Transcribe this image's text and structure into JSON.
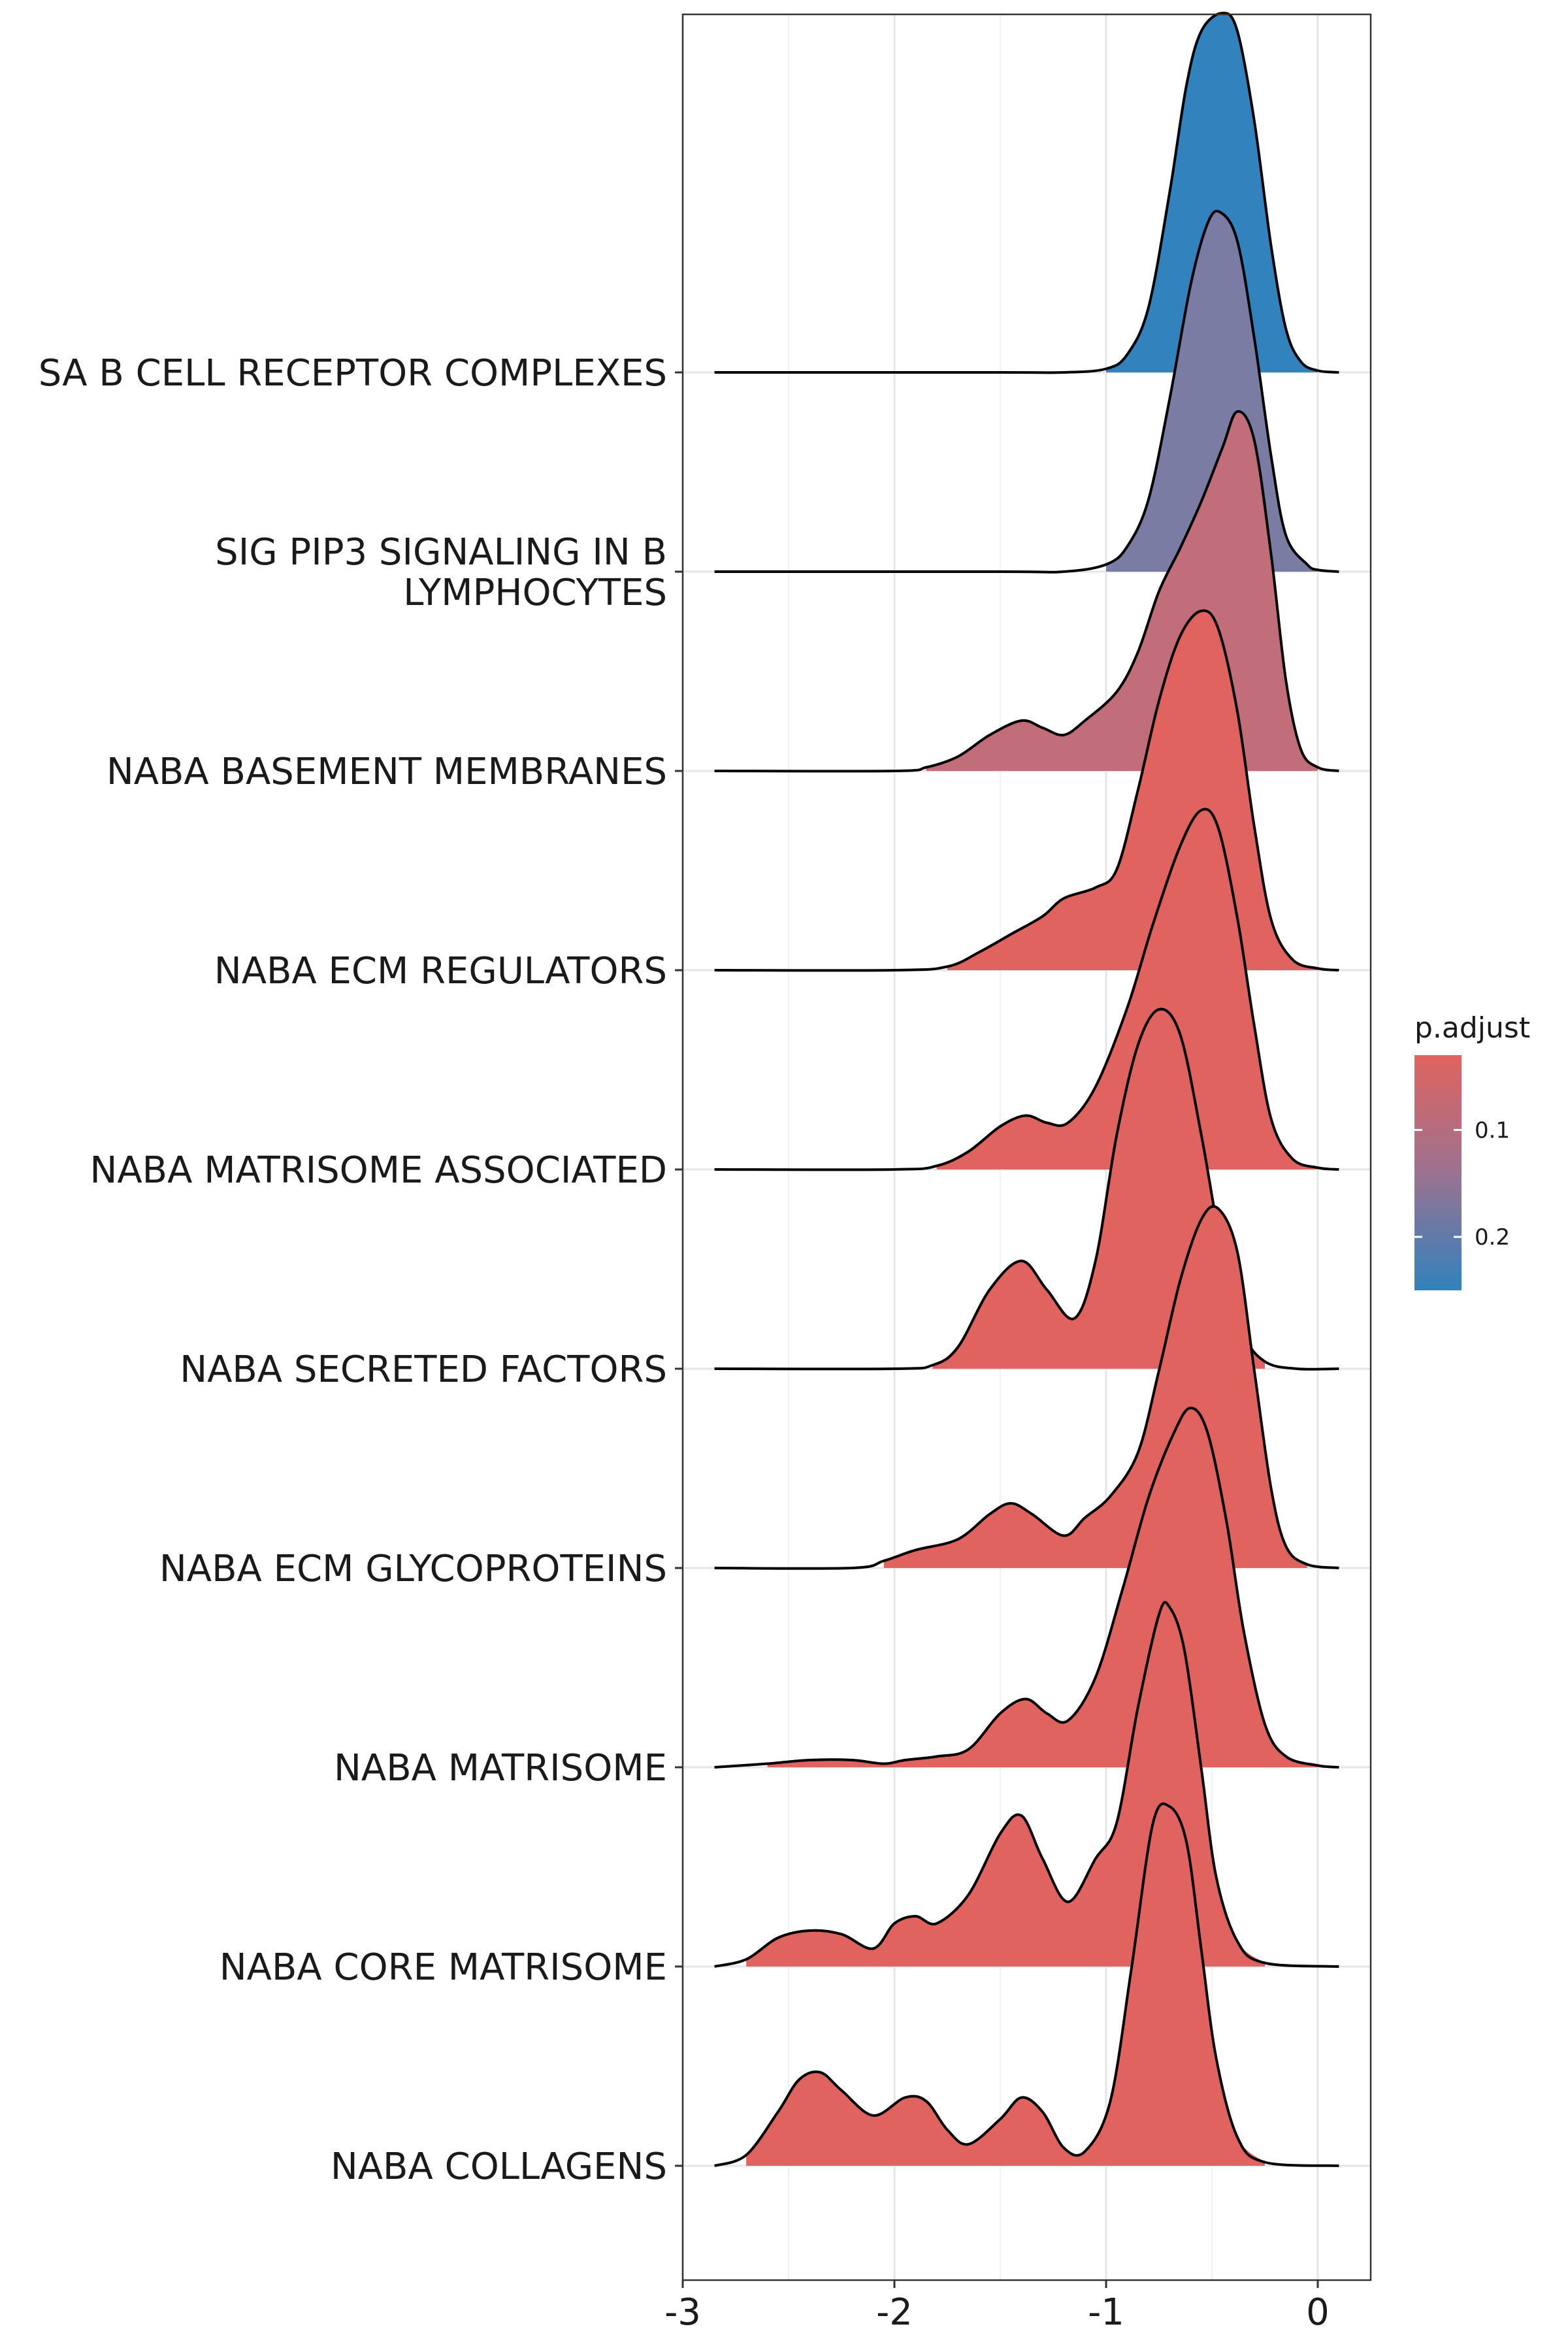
{
  "chart_data": {
    "type": "ridgeline",
    "xlabel": "",
    "ylabel": "",
    "xlim": [
      -3,
      0.25
    ],
    "xticks": [
      -3,
      -2,
      -1,
      0
    ],
    "xtick_labels": [
      "-3",
      "-2",
      "-1",
      "0"
    ],
    "grid": true,
    "legend": {
      "title": "p.adjust",
      "placement": "right",
      "ticks": [
        0.1,
        0.2
      ],
      "tick_labels": [
        "0.1",
        "0.2"
      ],
      "colors": {
        "low": "#E0635F",
        "mid": "#9B7290",
        "high": "#3182BD"
      }
    },
    "series": [
      {
        "name": "SA B CELL RECEPTOR COMPLEXES",
        "p_adjust": 0.24,
        "color": "#3182BD",
        "points": [
          [
            -2.85,
            0
          ],
          [
            -1.5,
            0
          ],
          [
            -1.2,
            0
          ],
          [
            -1.0,
            0.01
          ],
          [
            -0.9,
            0.05
          ],
          [
            -0.8,
            0.18
          ],
          [
            -0.7,
            0.5
          ],
          [
            -0.62,
            0.8
          ],
          [
            -0.55,
            0.95
          ],
          [
            -0.45,
            1.0
          ],
          [
            -0.38,
            0.95
          ],
          [
            -0.3,
            0.7
          ],
          [
            -0.22,
            0.35
          ],
          [
            -0.15,
            0.12
          ],
          [
            -0.08,
            0.03
          ],
          [
            0.0,
            0.005
          ],
          [
            0.1,
            0
          ]
        ]
      },
      {
        "name": "SIG PIP3 SIGNALING IN B LYMPHOCYTES",
        "p_adjust": 0.2,
        "color": "#7B7CA4",
        "points": [
          [
            -2.85,
            0
          ],
          [
            -1.5,
            0
          ],
          [
            -1.2,
            0
          ],
          [
            -1.0,
            0.02
          ],
          [
            -0.9,
            0.07
          ],
          [
            -0.8,
            0.2
          ],
          [
            -0.7,
            0.48
          ],
          [
            -0.6,
            0.8
          ],
          [
            -0.52,
            0.97
          ],
          [
            -0.46,
            1.0
          ],
          [
            -0.38,
            0.92
          ],
          [
            -0.3,
            0.65
          ],
          [
            -0.22,
            0.32
          ],
          [
            -0.15,
            0.1
          ],
          [
            -0.05,
            0.02
          ],
          [
            0.0,
            0.005
          ],
          [
            0.1,
            0
          ]
        ]
      },
      {
        "name": "NABA BASEMENT MEMBRANES",
        "p_adjust": 0.13,
        "color": "#C26D7A",
        "points": [
          [
            -2.85,
            0
          ],
          [
            -2.0,
            0
          ],
          [
            -1.85,
            0.01
          ],
          [
            -1.7,
            0.04
          ],
          [
            -1.55,
            0.1
          ],
          [
            -1.4,
            0.14
          ],
          [
            -1.3,
            0.12
          ],
          [
            -1.2,
            0.1
          ],
          [
            -1.1,
            0.14
          ],
          [
            -0.95,
            0.22
          ],
          [
            -0.85,
            0.33
          ],
          [
            -0.75,
            0.5
          ],
          [
            -0.65,
            0.62
          ],
          [
            -0.55,
            0.75
          ],
          [
            -0.45,
            0.9
          ],
          [
            -0.38,
            1.0
          ],
          [
            -0.3,
            0.92
          ],
          [
            -0.22,
            0.6
          ],
          [
            -0.15,
            0.25
          ],
          [
            -0.08,
            0.06
          ],
          [
            0.0,
            0.01
          ],
          [
            0.1,
            0
          ]
        ]
      },
      {
        "name": "NABA ECM REGULATORS",
        "p_adjust": 0.05,
        "color": "#E0635F",
        "points": [
          [
            -2.85,
            0
          ],
          [
            -2.0,
            0
          ],
          [
            -1.75,
            0.01
          ],
          [
            -1.6,
            0.05
          ],
          [
            -1.45,
            0.1
          ],
          [
            -1.3,
            0.15
          ],
          [
            -1.2,
            0.2
          ],
          [
            -1.05,
            0.23
          ],
          [
            -0.95,
            0.28
          ],
          [
            -0.85,
            0.5
          ],
          [
            -0.75,
            0.75
          ],
          [
            -0.65,
            0.93
          ],
          [
            -0.55,
            1.0
          ],
          [
            -0.47,
            0.95
          ],
          [
            -0.38,
            0.72
          ],
          [
            -0.3,
            0.4
          ],
          [
            -0.22,
            0.14
          ],
          [
            -0.12,
            0.03
          ],
          [
            0.0,
            0.005
          ],
          [
            0.1,
            0
          ]
        ]
      },
      {
        "name": "NABA MATRISOME ASSOCIATED",
        "p_adjust": 0.05,
        "color": "#E0635F",
        "points": [
          [
            -2.85,
            0
          ],
          [
            -2.0,
            0
          ],
          [
            -1.8,
            0.01
          ],
          [
            -1.65,
            0.05
          ],
          [
            -1.5,
            0.12
          ],
          [
            -1.38,
            0.15
          ],
          [
            -1.28,
            0.13
          ],
          [
            -1.18,
            0.13
          ],
          [
            -1.05,
            0.23
          ],
          [
            -0.9,
            0.45
          ],
          [
            -0.78,
            0.68
          ],
          [
            -0.65,
            0.9
          ],
          [
            -0.55,
            1.0
          ],
          [
            -0.47,
            0.95
          ],
          [
            -0.38,
            0.7
          ],
          [
            -0.3,
            0.4
          ],
          [
            -0.22,
            0.14
          ],
          [
            -0.12,
            0.03
          ],
          [
            0.0,
            0.005
          ],
          [
            0.1,
            0
          ]
        ]
      },
      {
        "name": "NABA SECRETED FACTORS",
        "p_adjust": 0.05,
        "color": "#E0635F",
        "points": [
          [
            -2.85,
            0
          ],
          [
            -2.0,
            0
          ],
          [
            -1.82,
            0.01
          ],
          [
            -1.7,
            0.06
          ],
          [
            -1.55,
            0.22
          ],
          [
            -1.4,
            0.3
          ],
          [
            -1.28,
            0.22
          ],
          [
            -1.15,
            0.14
          ],
          [
            -1.05,
            0.3
          ],
          [
            -0.95,
            0.65
          ],
          [
            -0.85,
            0.9
          ],
          [
            -0.75,
            1.0
          ],
          [
            -0.65,
            0.93
          ],
          [
            -0.55,
            0.65
          ],
          [
            -0.45,
            0.32
          ],
          [
            -0.35,
            0.1
          ],
          [
            -0.25,
            0.02
          ],
          [
            -0.1,
            0
          ],
          [
            0.1,
            0
          ]
        ]
      },
      {
        "name": "NABA ECM GLYCOPROTEINS",
        "p_adjust": 0.05,
        "color": "#E0635F",
        "points": [
          [
            -2.85,
            0
          ],
          [
            -2.2,
            0
          ],
          [
            -2.05,
            0.02
          ],
          [
            -1.9,
            0.05
          ],
          [
            -1.7,
            0.08
          ],
          [
            -1.55,
            0.15
          ],
          [
            -1.45,
            0.18
          ],
          [
            -1.35,
            0.15
          ],
          [
            -1.2,
            0.09
          ],
          [
            -1.1,
            0.14
          ],
          [
            -0.98,
            0.2
          ],
          [
            -0.85,
            0.32
          ],
          [
            -0.75,
            0.55
          ],
          [
            -0.65,
            0.8
          ],
          [
            -0.55,
            0.97
          ],
          [
            -0.47,
            1.0
          ],
          [
            -0.38,
            0.88
          ],
          [
            -0.3,
            0.55
          ],
          [
            -0.22,
            0.22
          ],
          [
            -0.15,
            0.06
          ],
          [
            -0.05,
            0.01
          ],
          [
            0.1,
            0
          ]
        ]
      },
      {
        "name": "NABA MATRISOME",
        "p_adjust": 0.05,
        "color": "#E0635F",
        "points": [
          [
            -2.85,
            0
          ],
          [
            -2.6,
            0.01
          ],
          [
            -2.4,
            0.02
          ],
          [
            -2.2,
            0.02
          ],
          [
            -2.05,
            0.01
          ],
          [
            -1.95,
            0.02
          ],
          [
            -1.8,
            0.03
          ],
          [
            -1.65,
            0.05
          ],
          [
            -1.5,
            0.15
          ],
          [
            -1.38,
            0.19
          ],
          [
            -1.28,
            0.15
          ],
          [
            -1.18,
            0.13
          ],
          [
            -1.05,
            0.25
          ],
          [
            -0.92,
            0.5
          ],
          [
            -0.8,
            0.75
          ],
          [
            -0.68,
            0.93
          ],
          [
            -0.6,
            1.0
          ],
          [
            -0.52,
            0.93
          ],
          [
            -0.43,
            0.68
          ],
          [
            -0.35,
            0.38
          ],
          [
            -0.25,
            0.12
          ],
          [
            -0.15,
            0.03
          ],
          [
            0.0,
            0.005
          ],
          [
            0.1,
            0
          ]
        ]
      },
      {
        "name": "NABA CORE MATRISOME",
        "p_adjust": 0.05,
        "color": "#E0635F",
        "points": [
          [
            -2.85,
            0
          ],
          [
            -2.7,
            0.02
          ],
          [
            -2.55,
            0.08
          ],
          [
            -2.4,
            0.1
          ],
          [
            -2.25,
            0.09
          ],
          [
            -2.1,
            0.05
          ],
          [
            -2.0,
            0.12
          ],
          [
            -1.9,
            0.14
          ],
          [
            -1.8,
            0.12
          ],
          [
            -1.65,
            0.2
          ],
          [
            -1.5,
            0.37
          ],
          [
            -1.4,
            0.42
          ],
          [
            -1.3,
            0.3
          ],
          [
            -1.18,
            0.18
          ],
          [
            -1.05,
            0.3
          ],
          [
            -0.95,
            0.4
          ],
          [
            -0.85,
            0.72
          ],
          [
            -0.75,
            0.98
          ],
          [
            -0.7,
            1.0
          ],
          [
            -0.63,
            0.88
          ],
          [
            -0.55,
            0.55
          ],
          [
            -0.48,
            0.25
          ],
          [
            -0.38,
            0.07
          ],
          [
            -0.25,
            0.01
          ],
          [
            0.1,
            0
          ]
        ]
      },
      {
        "name": "NABA COLLAGENS",
        "p_adjust": 0.05,
        "color": "#E0635F",
        "points": [
          [
            -2.85,
            0
          ],
          [
            -2.7,
            0.03
          ],
          [
            -2.55,
            0.15
          ],
          [
            -2.45,
            0.24
          ],
          [
            -2.35,
            0.26
          ],
          [
            -2.25,
            0.21
          ],
          [
            -2.1,
            0.14
          ],
          [
            -1.95,
            0.19
          ],
          [
            -1.85,
            0.18
          ],
          [
            -1.75,
            0.1
          ],
          [
            -1.65,
            0.06
          ],
          [
            -1.5,
            0.13
          ],
          [
            -1.4,
            0.19
          ],
          [
            -1.3,
            0.15
          ],
          [
            -1.2,
            0.05
          ],
          [
            -1.1,
            0.04
          ],
          [
            -0.98,
            0.18
          ],
          [
            -0.88,
            0.55
          ],
          [
            -0.78,
            0.95
          ],
          [
            -0.7,
            1.0
          ],
          [
            -0.62,
            0.9
          ],
          [
            -0.55,
            0.6
          ],
          [
            -0.48,
            0.3
          ],
          [
            -0.38,
            0.08
          ],
          [
            -0.25,
            0.01
          ],
          [
            0.1,
            0
          ]
        ]
      }
    ]
  }
}
